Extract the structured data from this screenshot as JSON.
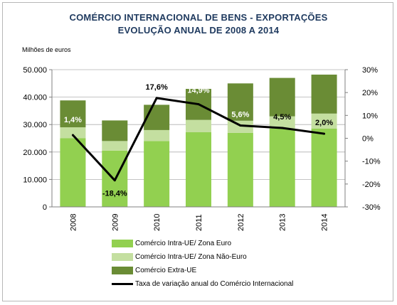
{
  "title_line1": "COMÉRCIO INTERNACIONAL  DE BENS - EXPORTAÇÕES",
  "title_line2": "EVOLUÇÃO ANUAL DE 2008 A 2014",
  "unit_label": "Milhões de euros",
  "chart_data": {
    "type": "bar",
    "stacked": true,
    "categories": [
      "2008",
      "2009",
      "2010",
      "2011",
      "2012",
      "2013",
      "2014"
    ],
    "series": [
      {
        "name": "Comércio Intra-UE/ Zona Euro",
        "color": "#92d050",
        "axis": "left",
        "values": [
          25000,
          20500,
          24000,
          27200,
          27000,
          28500,
          28500
        ]
      },
      {
        "name": "Comércio Intra-UE/ Zona Não-Euro",
        "color": "#c4dfa0",
        "axis": "left",
        "values": [
          4000,
          3500,
          4000,
          4500,
          4400,
          4500,
          5500
        ]
      },
      {
        "name": "Comércio Extra-UE",
        "color": "#6a8c35",
        "axis": "left",
        "values": [
          9800,
          7500,
          9200,
          11300,
          13600,
          14000,
          14200
        ]
      },
      {
        "name": "Taxa de variação anual do Comércio Internacional",
        "type": "line",
        "color": "#000000",
        "axis": "right",
        "values": [
          1.4,
          -18.4,
          17.6,
          14.9,
          5.6,
          4.5,
          2.0
        ]
      }
    ],
    "data_labels": [
      "1,4%",
      "-18,4%",
      "17,6%",
      "14,9%",
      "5,6%",
      "4,5%",
      "2,0%"
    ],
    "y_left": {
      "min": 0,
      "max": 50000,
      "ticks": [
        "0",
        "10.000",
        "20.000",
        "30.000",
        "40.000",
        "50.000"
      ]
    },
    "y_right": {
      "min": -30,
      "max": 30,
      "ticks": [
        "-30%",
        "-20%",
        "-10%",
        "0%",
        "10%",
        "20%",
        "30%"
      ]
    },
    "grid": true,
    "legend": "bottom"
  }
}
